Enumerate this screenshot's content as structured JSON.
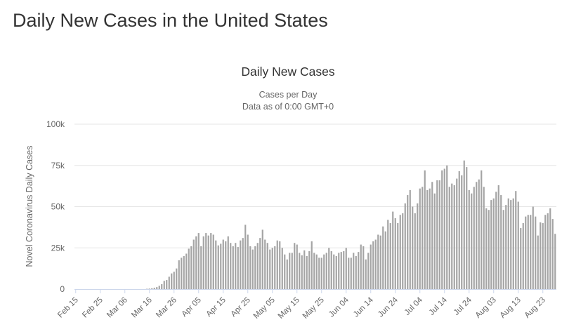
{
  "page": {
    "heading": "Daily New Cases in the United States"
  },
  "colors": {
    "bar": "#a4a4a4",
    "grid": "#e6e6e6",
    "axis": "#ccd6eb",
    "text": "#333333",
    "tick": "#666666"
  },
  "chart_data": {
    "type": "bar",
    "title": "Daily New Cases",
    "subtitle_lines": [
      "Cases per Day",
      "Data as of 0:00 GMT+0"
    ],
    "ylabel": "Novel Coronavirus Daily Cases",
    "xlabel": "",
    "ylim": [
      0,
      100000
    ],
    "yticks": [
      {
        "value": 0,
        "label": "0"
      },
      {
        "value": 25000,
        "label": "25k"
      },
      {
        "value": 50000,
        "label": "50k"
      },
      {
        "value": 75000,
        "label": "75k"
      },
      {
        "value": 100000,
        "label": "100k"
      }
    ],
    "x_start": "Feb 15",
    "xtick_labels": [
      "Feb 15",
      "Feb 25",
      "Mar 06",
      "Mar 16",
      "Mar 26",
      "Apr 05",
      "Apr 15",
      "Apr 25",
      "May 05",
      "May 15",
      "May 25",
      "Jun 04",
      "Jun 14",
      "Jun 24",
      "Jul 04",
      "Jul 14",
      "Jul 24",
      "Aug 03",
      "Aug 13",
      "Aug 23"
    ],
    "xtick_interval_days": 10,
    "grid": true,
    "legend": "none",
    "values": [
      0,
      0,
      0,
      0,
      0,
      0,
      0,
      0,
      0,
      0,
      0,
      0,
      0,
      0,
      0,
      0,
      0,
      0,
      0,
      0,
      0,
      0,
      0,
      0,
      0,
      0,
      0,
      0,
      0,
      200,
      300,
      500,
      800,
      1200,
      2000,
      3000,
      5000,
      5500,
      7500,
      9500,
      10500,
      12500,
      17500,
      19000,
      20000,
      21500,
      24500,
      26000,
      30000,
      32000,
      34000,
      26000,
      32000,
      34000,
      32500,
      34000,
      33000,
      29500,
      26500,
      27500,
      30000,
      29000,
      32000,
      28000,
      26000,
      28000,
      25500,
      29500,
      31000,
      39000,
      33000,
      26000,
      24000,
      26000,
      28000,
      31000,
      36000,
      30000,
      28000,
      24000,
      25000,
      26000,
      29500,
      29000,
      25000,
      21000,
      18000,
      22000,
      22000,
      28000,
      27000,
      22000,
      20500,
      23500,
      20000,
      23000,
      29000,
      22000,
      21000,
      19000,
      19000,
      21000,
      22000,
      25000,
      23000,
      21000,
      20000,
      22000,
      22500,
      23000,
      25000,
      19000,
      19000,
      22000,
      20000,
      22500,
      27000,
      26000,
      18000,
      22000,
      27000,
      29000,
      30000,
      33000,
      32500,
      38000,
      35000,
      42000,
      40000,
      47000,
      43000,
      40000,
      45000,
      46000,
      52000,
      57000,
      60000,
      50000,
      46000,
      52000,
      61000,
      62000,
      72000,
      60000,
      61000,
      65000,
      58000,
      66000,
      66000,
      72000,
      73000,
      75000,
      62000,
      64000,
      63000,
      67000,
      71500,
      69000,
      78000,
      74000,
      60000,
      58000,
      62000,
      65000,
      66500,
      72000,
      62000,
      49000,
      48000,
      54000,
      55000,
      59000,
      63000,
      57000,
      48000,
      51000,
      55000,
      54000,
      55000,
      59500,
      53000,
      37000,
      40000,
      44000,
      45000,
      45000,
      50000,
      44000,
      32500,
      40500,
      40000,
      45000,
      46000,
      49000,
      42500,
      33500
    ]
  }
}
